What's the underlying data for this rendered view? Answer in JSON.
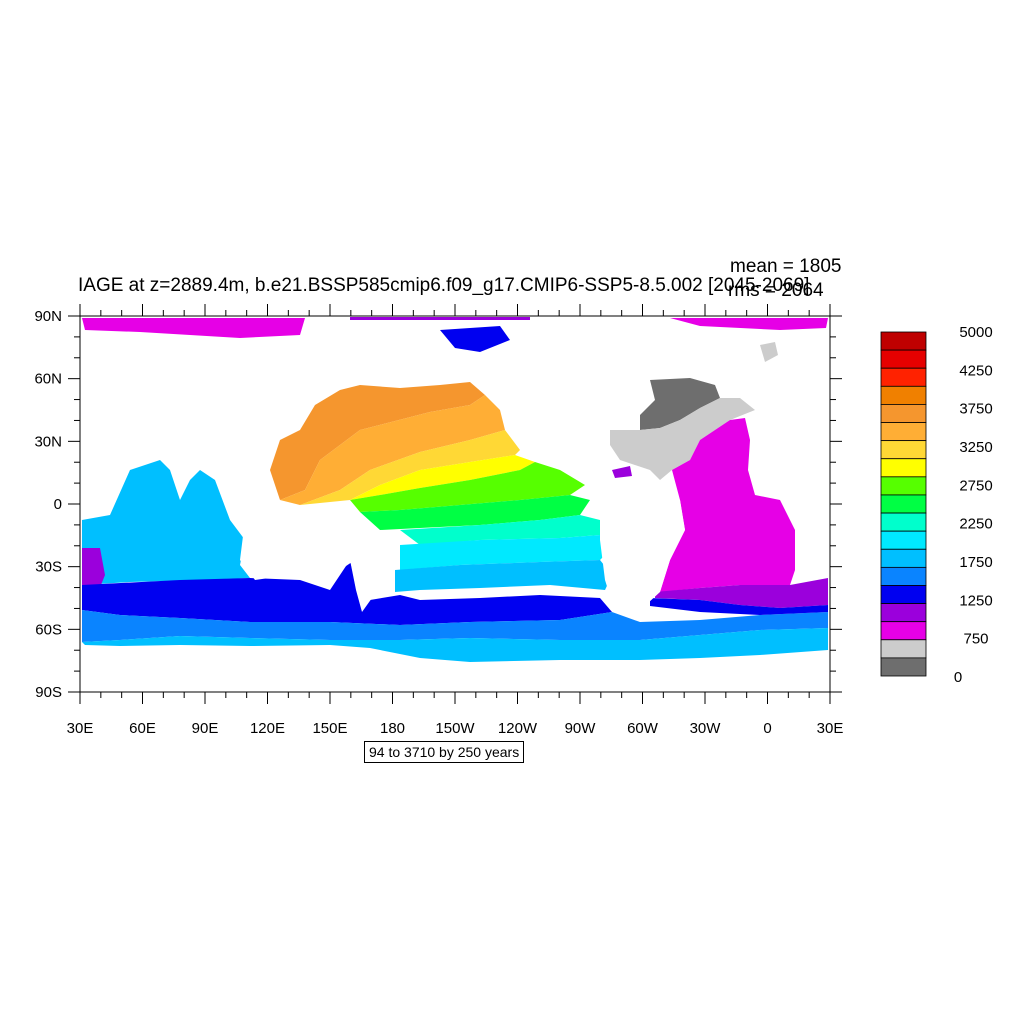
{
  "title": "IAGE at z=2889.4m, b.e21.BSSP585cmip6.f09_g17.CMIP6-SSP5-8.5.002 [2045-2069]",
  "stats": {
    "mean": "mean = 1805",
    "rms": "rms = 2064"
  },
  "axes": {
    "y_labels": [
      "90N",
      "60N",
      "30N",
      "0",
      "30S",
      "60S",
      "90S"
    ],
    "x_labels": [
      "30E",
      "60E",
      "90E",
      "120E",
      "150E",
      "180",
      "150W",
      "120W",
      "90W",
      "60W",
      "30W",
      "0",
      "30E"
    ]
  },
  "contour_info": "94 to 3710 by 250 years",
  "colorbar": {
    "labels": [
      "5000",
      "4250",
      "3750",
      "3250",
      "2750",
      "2250",
      "1750",
      "1250",
      "750",
      "0"
    ],
    "colors_top_to_bottom": [
      "#bf0000",
      "#e60000",
      "#ff2200",
      "#f08000",
      "#f5962e",
      "#ffae35",
      "#ffd835",
      "#ffff00",
      "#56ff00",
      "#00ff44",
      "#00ffcc",
      "#00e9ff",
      "#00bfff",
      "#0a84ff",
      "#0000f0",
      "#9b00dc",
      "#e600e6",
      "#cccccc",
      "#6e6e6e"
    ]
  },
  "map_colors": {
    "gray_dark": "#6e6e6e",
    "gray_light": "#cccccc",
    "magenta": "#e600e6",
    "purple": "#9b00dc",
    "blue": "#0000f0",
    "blue_mid": "#0a84ff",
    "sky": "#00bfff",
    "cyan_light": "#00e9ff",
    "aqua": "#00ffcc",
    "green": "#00ff44",
    "lime": "#56ff00",
    "yellow": "#ffff00",
    "gold": "#ffd835",
    "orange_light": "#ffae35",
    "orange": "#f5962e"
  }
}
